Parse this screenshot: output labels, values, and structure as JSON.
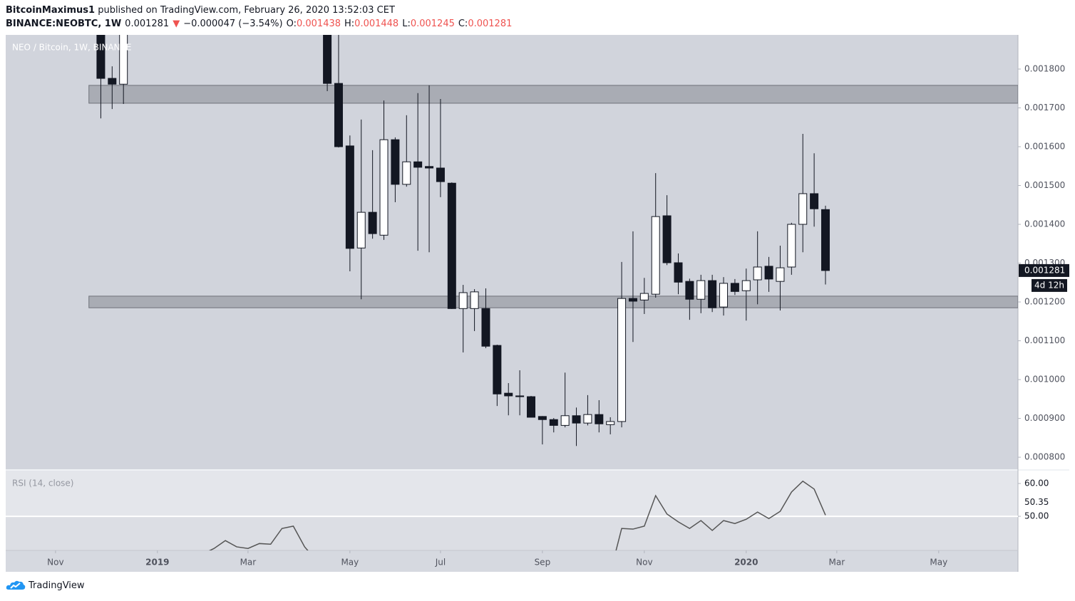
{
  "header": {
    "author": "BitcoinMaximus1",
    "published": "published on TradingView.com, February 26, 2020 13:52:03 CET",
    "quote": [
      {
        "text": "BINANCE:NEOBTC, 1W",
        "color": "#131722"
      },
      {
        "text": "0.001281",
        "color": "#131722"
      },
      {
        "text": "▼",
        "color": "#ef5350"
      },
      {
        "text": "−0.000047 (−3.54%)",
        "color": "#131722"
      },
      {
        "text": "O:",
        "color": "#131722"
      },
      {
        "text": "0.001438",
        "color": "#ef5350"
      },
      {
        "text": "H:",
        "color": "#131722"
      },
      {
        "text": "0.001448",
        "color": "#ef5350"
      },
      {
        "text": "L:",
        "color": "#131722"
      },
      {
        "text": "0.001245",
        "color": "#ef5350"
      },
      {
        "text": "C:",
        "color": "#131722"
      },
      {
        "text": "0.001281",
        "color": "#ef5350"
      }
    ]
  },
  "footer": {
    "brand": "TradingView"
  },
  "chart_data": {
    "type": "candlestick",
    "legend_title": "NEO / Bitcoin, 1W, BINANCE",
    "categories": [
      null,
      null,
      null,
      null,
      null,
      null,
      null,
      null,
      null,
      null,
      null,
      null,
      null,
      null,
      null,
      null,
      null,
      null,
      null,
      null,
      null,
      null,
      null,
      null,
      null,
      null,
      null,
      null,
      null,
      null,
      null,
      null,
      null,
      null,
      null,
      null,
      null,
      null,
      null,
      null,
      null,
      null,
      null,
      null,
      null,
      null,
      null,
      null,
      null,
      null,
      null,
      null,
      null,
      null,
      null,
      null,
      null,
      null,
      null,
      null,
      null,
      null,
      null,
      null,
      null
    ],
    "open": [
      0.0019,
      0.001776,
      0.001761,
      null,
      null,
      null,
      null,
      null,
      null,
      null,
      null,
      null,
      null,
      null,
      null,
      null,
      null,
      null,
      null,
      null,
      0.00195,
      0.001763,
      0.001602,
      0.001339,
      0.001431,
      0.001372,
      0.001618,
      0.001503,
      0.001561,
      0.001549,
      0.001545,
      0.001506,
      0.001183,
      0.001183,
      0.001183,
      0.001088,
      0.000965,
      0.000958,
      0.000956,
      0.000905,
      0.000897,
      0.000882,
      0.000907,
      0.000888,
      0.00091,
      0.000884,
      0.000892,
      0.001209,
      0.001205,
      0.00122,
      0.001422,
      0.001301,
      0.001253,
      0.001207,
      0.001255,
      0.001187,
      0.001248,
      0.001229,
      0.001257,
      0.001292,
      0.001253,
      0.00129,
      0.0014,
      0.001479,
      0.001438
    ],
    "high": [
      0.00195,
      0.001807,
      0.00196,
      null,
      null,
      null,
      null,
      null,
      null,
      null,
      null,
      null,
      null,
      null,
      null,
      null,
      null,
      null,
      null,
      null,
      0.002,
      0.0019,
      0.001629,
      0.00167,
      0.001591,
      0.001719,
      0.001624,
      0.001681,
      0.001738,
      0.001758,
      0.001723,
      0.001508,
      0.001244,
      0.001233,
      0.001235,
      0.00109,
      0.000991,
      0.001024,
      0.000958,
      0.000906,
      0.000901,
      0.001018,
      0.000928,
      0.00096,
      0.000947,
      0.000903,
      0.001303,
      0.001382,
      0.001262,
      0.001532,
      0.001475,
      0.001325,
      0.00126,
      0.00127,
      0.00127,
      0.001264,
      0.001259,
      0.001286,
      0.001382,
      0.001316,
      0.001345,
      0.001404,
      0.001633,
      0.001583,
      0.001448
    ],
    "low": [
      0.001673,
      0.001697,
      0.00171,
      null,
      null,
      null,
      null,
      null,
      null,
      null,
      null,
      null,
      null,
      null,
      null,
      null,
      null,
      null,
      null,
      null,
      0.001743,
      0.001598,
      0.001279,
      0.001207,
      0.001363,
      0.00136,
      0.001457,
      0.001497,
      0.001332,
      0.001328,
      0.00147,
      0.001182,
      0.00107,
      0.001125,
      0.001081,
      0.000932,
      0.000908,
      0.000908,
      0.000903,
      0.000833,
      0.000864,
      0.000877,
      0.000829,
      0.000882,
      0.000864,
      0.000859,
      0.000877,
      0.001097,
      0.001169,
      0.001211,
      0.001295,
      0.00122,
      0.001154,
      0.001171,
      0.001174,
      0.001165,
      0.001218,
      0.001152,
      0.001194,
      0.001226,
      0.001178,
      0.00127,
      0.001328,
      0.001394,
      0.001245
    ],
    "close": [
      0.001776,
      0.001761,
      0.00192,
      null,
      null,
      null,
      null,
      null,
      null,
      null,
      null,
      null,
      null,
      null,
      null,
      null,
      null,
      null,
      null,
      null,
      0.001763,
      0.0016,
      0.001338,
      0.001431,
      0.001376,
      0.001618,
      0.001503,
      0.001561,
      0.001547,
      0.001545,
      0.00151,
      0.001183,
      0.001224,
      0.001226,
      0.001086,
      0.000963,
      0.000958,
      0.000956,
      0.000903,
      0.000897,
      0.000882,
      0.000907,
      0.000888,
      0.00091,
      0.000886,
      0.000892,
      0.001209,
      0.001202,
      0.001222,
      0.00142,
      0.001301,
      0.001251,
      0.001207,
      0.001255,
      0.001185,
      0.001248,
      0.001227,
      0.001255,
      0.00129,
      0.001259,
      0.001288,
      0.0014,
      0.001479,
      0.00144,
      0.001281
    ],
    "up_color": "#ffffff",
    "down_color": "#131722",
    "outline_color": "#131722",
    "ylim": [
      0.000769,
      0.001888
    ],
    "yticks": [
      {
        "value": 0.0018,
        "label": "0.001800"
      },
      {
        "value": 0.0017,
        "label": "0.001700"
      },
      {
        "value": 0.0016,
        "label": "0.001600"
      },
      {
        "value": 0.0015,
        "label": "0.001500"
      },
      {
        "value": 0.0014,
        "label": "0.001400"
      },
      {
        "value": 0.0013,
        "label": "0.001300"
      },
      {
        "value": 0.0012,
        "label": "0.001200"
      },
      {
        "value": 0.0011,
        "label": "0.001100"
      },
      {
        "value": 0.001,
        "label": "0.001000"
      },
      {
        "value": 0.0009,
        "label": "0.000900"
      },
      {
        "value": 0.0008,
        "label": "0.000800"
      }
    ],
    "xlim": [
      -8.4,
      81
    ],
    "xticks": [
      {
        "value": -4,
        "label": "Nov"
      },
      {
        "value": 5,
        "label": "2019"
      },
      {
        "value": 13,
        "label": "Mar"
      },
      {
        "value": 22,
        "label": "May"
      },
      {
        "value": 30,
        "label": "Jul"
      },
      {
        "value": 39,
        "label": "Sep"
      },
      {
        "value": 48,
        "label": "Nov"
      },
      {
        "value": 57,
        "label": "2020"
      },
      {
        "value": 65,
        "label": "Mar"
      },
      {
        "value": 74,
        "label": "May"
      }
    ],
    "grid": false,
    "zones": [
      {
        "from": 0.001712,
        "to": 0.001758
      },
      {
        "from": 0.001185,
        "to": 0.001215
      }
    ],
    "zone_color": "#8e9199",
    "last_price_label": "0.001281",
    "countdown": "4d 12h",
    "rsi": {
      "title": "RSI (14, close)",
      "color": "#555555",
      "values": [
        null,
        null,
        null,
        null,
        null,
        null,
        null,
        null,
        null,
        38.5,
        40.2,
        42.6,
        40.7,
        40.2,
        41.7,
        41.5,
        46.3,
        47.0,
        40.7,
        36.7,
        null,
        null,
        null,
        null,
        null,
        null,
        null,
        null,
        null,
        null,
        null,
        null,
        null,
        null,
        null,
        null,
        null,
        null,
        null,
        null,
        null,
        null,
        null,
        null,
        null,
        32.8,
        46.3,
        46.1,
        47.0,
        56.3,
        50.7,
        48.3,
        46.3,
        48.7,
        45.7,
        48.7,
        47.8,
        49.1,
        51.3,
        49.3,
        51.5,
        57.4,
        60.7,
        58.3,
        50.35
      ],
      "last_label": "50.35",
      "ylim": [
        39.6,
        63.9
      ],
      "yticks": [
        {
          "value": 60,
          "label": "60.00"
        },
        {
          "value": 50,
          "label": "50.00"
        }
      ]
    }
  }
}
